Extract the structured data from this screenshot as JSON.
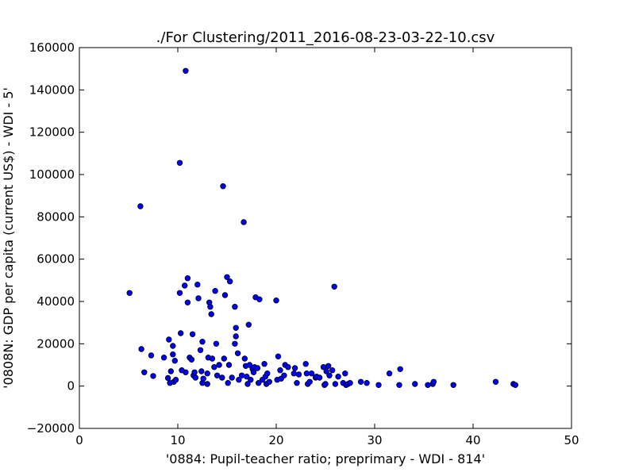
{
  "chart_data": {
    "type": "scatter",
    "title": "./For Clustering/2011_2016-08-23-03-22-10.csv",
    "xlabel": "'0884: Pupil-teacher ratio; preprimary - WDI - 814'",
    "ylabel": "'0808N: GDP per capita  (current US$) - WDI - 5'",
    "xlim": [
      0,
      50
    ],
    "ylim": [
      -20000,
      160000
    ],
    "x_ticks": [
      0,
      10,
      20,
      30,
      40,
      50
    ],
    "y_ticks": [
      -20000,
      0,
      20000,
      40000,
      60000,
      80000,
      100000,
      120000,
      140000,
      160000
    ],
    "grid": false,
    "marker_color": "#0000ff",
    "marker_edge": "#000000",
    "points": [
      [
        5.1,
        44000
      ],
      [
        6.2,
        85000
      ],
      [
        6.3,
        17500
      ],
      [
        6.6,
        6500
      ],
      [
        7.3,
        14500
      ],
      [
        7.5,
        4800
      ],
      [
        8.6,
        13500
      ],
      [
        9.0,
        3800
      ],
      [
        9.1,
        22000
      ],
      [
        9.2,
        1500
      ],
      [
        9.3,
        7000
      ],
      [
        9.5,
        15000
      ],
      [
        9.5,
        19000
      ],
      [
        9.6,
        2000
      ],
      [
        9.7,
        12000
      ],
      [
        9.8,
        3000
      ],
      [
        10.2,
        105500
      ],
      [
        10.2,
        44000
      ],
      [
        10.3,
        25000
      ],
      [
        10.4,
        7500
      ],
      [
        10.7,
        47500
      ],
      [
        10.8,
        149000
      ],
      [
        10.8,
        6500
      ],
      [
        11.0,
        51000
      ],
      [
        11.0,
        39500
      ],
      [
        11.2,
        13500
      ],
      [
        11.4,
        12500
      ],
      [
        11.5,
        24500
      ],
      [
        11.6,
        5000
      ],
      [
        11.7,
        6500
      ],
      [
        11.8,
        4000
      ],
      [
        12.0,
        48000
      ],
      [
        12.1,
        41500
      ],
      [
        12.3,
        17000
      ],
      [
        12.4,
        7000
      ],
      [
        12.5,
        21000
      ],
      [
        12.5,
        1500
      ],
      [
        12.6,
        3500
      ],
      [
        13.0,
        1000
      ],
      [
        13.0,
        6000
      ],
      [
        13.1,
        13500
      ],
      [
        13.2,
        39500
      ],
      [
        13.3,
        37500
      ],
      [
        13.4,
        34000
      ],
      [
        13.5,
        13000
      ],
      [
        13.7,
        9000
      ],
      [
        13.8,
        45000
      ],
      [
        13.9,
        20000
      ],
      [
        14.0,
        5000
      ],
      [
        14.2,
        10000
      ],
      [
        14.5,
        4000
      ],
      [
        14.6,
        94500
      ],
      [
        14.7,
        13000
      ],
      [
        14.8,
        43000
      ],
      [
        15.0,
        51500
      ],
      [
        15.1,
        1500
      ],
      [
        15.2,
        10000
      ],
      [
        15.3,
        49500
      ],
      [
        15.5,
        4000
      ],
      [
        15.8,
        37500
      ],
      [
        15.8,
        20000
      ],
      [
        15.9,
        27500
      ],
      [
        15.9,
        23500
      ],
      [
        16.1,
        15500
      ],
      [
        16.2,
        3000
      ],
      [
        16.5,
        5000
      ],
      [
        16.7,
        77500
      ],
      [
        16.8,
        13000
      ],
      [
        16.9,
        9500
      ],
      [
        17.0,
        4500
      ],
      [
        17.1,
        1000
      ],
      [
        17.2,
        29000
      ],
      [
        17.3,
        10000
      ],
      [
        17.4,
        3000
      ],
      [
        17.6,
        8000
      ],
      [
        17.7,
        6500
      ],
      [
        17.8,
        9000
      ],
      [
        17.9,
        42000
      ],
      [
        18.1,
        8500
      ],
      [
        18.2,
        1500
      ],
      [
        18.3,
        41000
      ],
      [
        18.6,
        3000
      ],
      [
        18.8,
        10500
      ],
      [
        18.9,
        4500
      ],
      [
        19.0,
        1000
      ],
      [
        19.1,
        6000
      ],
      [
        19.3,
        2000
      ],
      [
        20.0,
        40500
      ],
      [
        20.1,
        3000
      ],
      [
        20.2,
        14000
      ],
      [
        20.4,
        7500
      ],
      [
        20.5,
        3500
      ],
      [
        20.8,
        5000
      ],
      [
        20.9,
        10000
      ],
      [
        21.2,
        9000
      ],
      [
        21.8,
        6000
      ],
      [
        21.9,
        8500
      ],
      [
        22.1,
        1500
      ],
      [
        22.3,
        5500
      ],
      [
        23.0,
        10500
      ],
      [
        23.1,
        6000
      ],
      [
        23.2,
        1000
      ],
      [
        23.4,
        2000
      ],
      [
        23.6,
        6000
      ],
      [
        24.0,
        4000
      ],
      [
        24.1,
        4500
      ],
      [
        24.4,
        4000
      ],
      [
        24.8,
        9000
      ],
      [
        24.9,
        500
      ],
      [
        25.0,
        1000
      ],
      [
        25.1,
        7000
      ],
      [
        25.3,
        9500
      ],
      [
        25.4,
        5000
      ],
      [
        25.7,
        7500
      ],
      [
        25.9,
        47000
      ],
      [
        26.0,
        1000
      ],
      [
        26.3,
        4500
      ],
      [
        26.8,
        1500
      ],
      [
        27.0,
        6000
      ],
      [
        27.1,
        500
      ],
      [
        27.3,
        1000
      ],
      [
        27.5,
        1500
      ],
      [
        28.6,
        2000
      ],
      [
        29.2,
        1500
      ],
      [
        30.4,
        500
      ],
      [
        31.5,
        6000
      ],
      [
        32.5,
        500
      ],
      [
        32.6,
        8000
      ],
      [
        34.1,
        1000
      ],
      [
        35.4,
        500
      ],
      [
        35.9,
        1000
      ],
      [
        36.0,
        2000
      ],
      [
        38.0,
        500
      ],
      [
        42.3,
        2000
      ],
      [
        44.1,
        1000
      ],
      [
        44.3,
        500
      ]
    ]
  }
}
